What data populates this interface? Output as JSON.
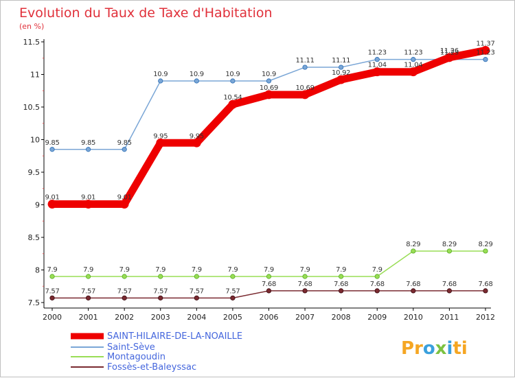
{
  "chart_data": {
    "type": "line",
    "title": "Evolution du Taux de Taxe d'Habitation",
    "subtitle": "(en %)",
    "x": [
      "2000",
      "2001",
      "2002",
      "2003",
      "2004",
      "2005",
      "2006",
      "2007",
      "2008",
      "2009",
      "2010",
      "2011",
      "2012"
    ],
    "ylim": [
      7.5,
      11.5
    ],
    "yticks": [
      "7.5",
      "8",
      "8.5",
      "9",
      "9.5",
      "10",
      "10.5",
      "11",
      "11.5"
    ],
    "grid": false,
    "legend_position": "bottom-left",
    "series": [
      {
        "name": "SAINT-HILAIRE-DE-LA-NOAILLE",
        "color": "#ee0000",
        "values": [
          9.01,
          9.01,
          9.01,
          9.95,
          9.95,
          10.54,
          10.69,
          10.69,
          10.92,
          11.04,
          11.04,
          11.26,
          11.37
        ],
        "labels": [
          "9.01",
          "9.01",
          "9.01",
          "9.95",
          "9.95",
          "10.54",
          "10.69",
          "10.69",
          "10.92",
          "11.04",
          "11.04",
          "11.26",
          "11.37"
        ]
      },
      {
        "name": "Saint-Sève",
        "color": "#7aa6d6",
        "values": [
          9.85,
          9.85,
          9.85,
          10.9,
          10.9,
          10.9,
          10.9,
          11.11,
          11.11,
          11.23,
          11.23,
          11.23,
          11.23
        ],
        "labels": [
          "9.85",
          "9.85",
          "9.85",
          "10.9",
          "10.9",
          "10.9",
          "10.9",
          "11.11",
          "11.11",
          "11.23",
          "11.23",
          "11.23",
          "11.23"
        ]
      },
      {
        "name": "Montagoudin",
        "color": "#99dd55",
        "values": [
          7.9,
          7.9,
          7.9,
          7.9,
          7.9,
          7.9,
          7.9,
          7.9,
          7.9,
          7.9,
          8.29,
          8.29,
          8.29
        ],
        "labels": [
          "7.9",
          "7.9",
          "7.9",
          "7.9",
          "7.9",
          "7.9",
          "7.9",
          "7.9",
          "7.9",
          "7.9",
          "8.29",
          "8.29",
          "8.29"
        ]
      },
      {
        "name": "Fossès-et-Baleyssac",
        "color": "#7a2a30",
        "values": [
          7.57,
          7.57,
          7.57,
          7.57,
          7.57,
          7.57,
          7.68,
          7.68,
          7.68,
          7.68,
          7.68,
          7.68,
          7.68
        ],
        "labels": [
          "7.57",
          "7.57",
          "7.57",
          "7.57",
          "7.57",
          "7.57",
          "7.68",
          "7.68",
          "7.68",
          "7.68",
          "7.68",
          "7.68",
          "7.68"
        ]
      }
    ]
  },
  "brand": {
    "letters": [
      "P",
      "r",
      "o",
      "x",
      "i",
      "t",
      "i"
    ],
    "colors": [
      "#f5a623",
      "#f5a623",
      "#3aa0dd",
      "#7cc242",
      "#3aa0dd",
      "#f5a623",
      "#f5a623"
    ]
  }
}
